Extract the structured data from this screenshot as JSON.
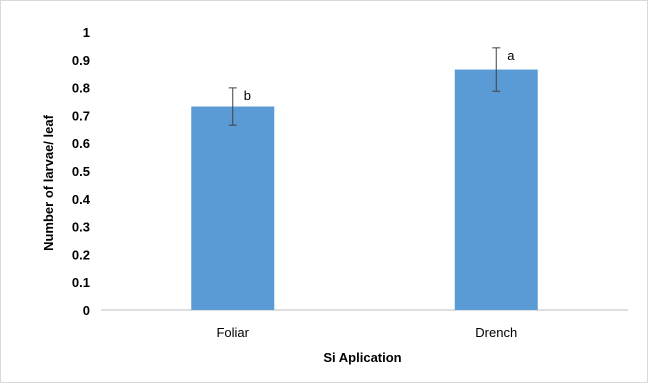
{
  "chart_data": {
    "type": "bar",
    "categories": [
      "Foliar",
      "Drench"
    ],
    "values": [
      0.732,
      0.865
    ],
    "error": [
      0.067,
      0.078
    ],
    "significance_labels": [
      "b",
      "a"
    ],
    "xlabel": "Si Aplication",
    "ylabel": "Number of larvae/ leaf",
    "ylim": [
      0,
      1
    ],
    "yticks": [
      "0",
      "0.1",
      "0.2",
      "0.3",
      "0.4",
      "0.5",
      "0.6",
      "0.7",
      "0.8",
      "0.9",
      "1"
    ],
    "grid": false,
    "legend": "none",
    "colors": {
      "bar": "#5b9bd5",
      "axis": "#bfbfbf",
      "error_bar": "#404040"
    }
  }
}
